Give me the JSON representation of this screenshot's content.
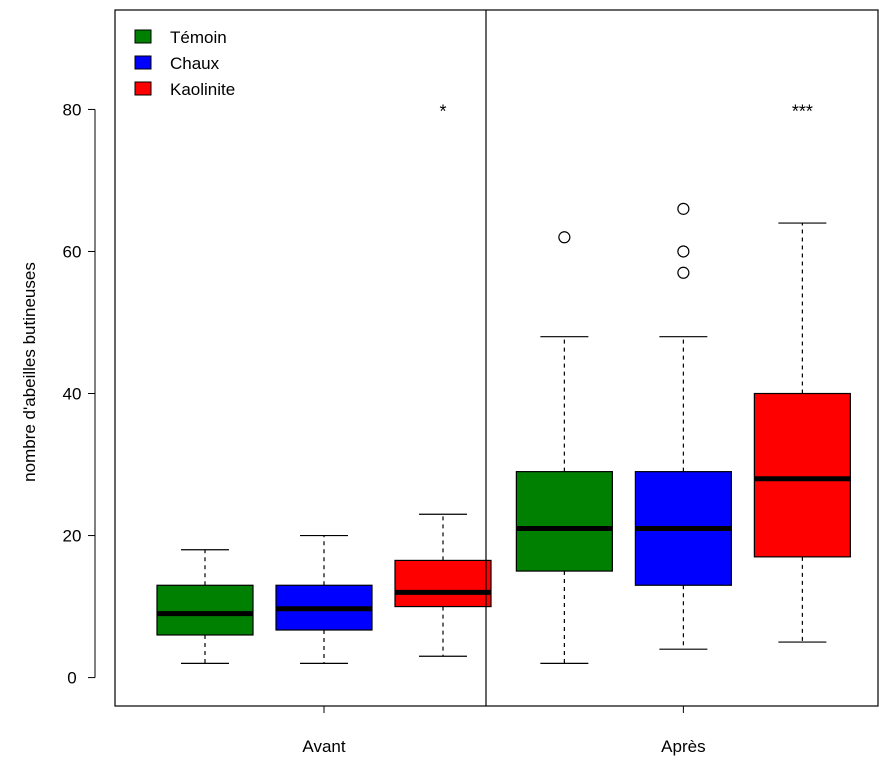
{
  "chart_data": {
    "type": "boxplot",
    "ylabel": "nombre d'abeilles butineuses",
    "ylim": [
      -4,
      94
    ],
    "y_ticks": [
      0,
      20,
      40,
      60,
      80
    ],
    "groups": [
      "Avant",
      "Après"
    ],
    "legend": {
      "placement": "top-left",
      "entries": [
        {
          "name": "Témoin",
          "color": "#008000"
        },
        {
          "name": "Chaux",
          "color": "#0000ff"
        },
        {
          "name": "Kaolinite",
          "color": "#ff0000"
        }
      ]
    },
    "boxes": [
      {
        "group": "Avant",
        "series": "Témoin",
        "color": "#008000",
        "whisker_low": 2,
        "q1": 6,
        "median": 9,
        "q3": 13,
        "whisker_high": 18,
        "outliers": []
      },
      {
        "group": "Avant",
        "series": "Chaux",
        "color": "#0000ff",
        "whisker_low": 2,
        "q1": 6.7,
        "median": 9.7,
        "q3": 13,
        "whisker_high": 20,
        "outliers": []
      },
      {
        "group": "Avant",
        "series": "Kaolinite",
        "color": "#ff0000",
        "whisker_low": 3,
        "q1": 10,
        "median": 12,
        "q3": 16.5,
        "whisker_high": 23,
        "outliers": []
      },
      {
        "group": "Après",
        "series": "Témoin",
        "color": "#008000",
        "whisker_low": 2,
        "q1": 15,
        "median": 21,
        "q3": 29,
        "whisker_high": 48,
        "outliers": [
          62
        ]
      },
      {
        "group": "Après",
        "series": "Chaux",
        "color": "#0000ff",
        "whisker_low": 4,
        "q1": 13,
        "median": 21,
        "q3": 29,
        "whisker_high": 48,
        "outliers": [
          57,
          60,
          66
        ]
      },
      {
        "group": "Après",
        "series": "Kaolinite",
        "color": "#ff0000",
        "whisker_low": 5,
        "q1": 17,
        "median": 28,
        "q3": 40,
        "whisker_high": 64,
        "outliers": []
      }
    ],
    "annotations": [
      {
        "group": "Avant",
        "series": "Kaolinite",
        "text": "*",
        "y": 80
      },
      {
        "group": "Après",
        "series": "Kaolinite",
        "text": "***",
        "y": 80
      }
    ]
  }
}
